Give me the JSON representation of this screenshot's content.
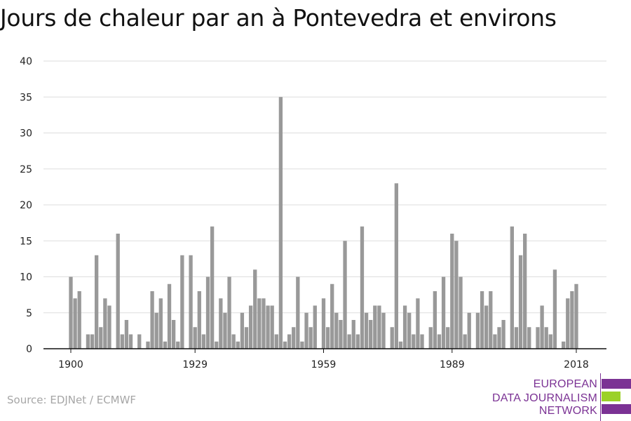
{
  "title": "Jours de chaleur par an à Pontevedra et environs",
  "source": "Source: EDJNet / ECMWF",
  "logo": {
    "line1": "EUROPEAN",
    "line2": "DATA JOURNALISM",
    "line3": "NETWORK",
    "purple": "#7b3294",
    "green": "#9bd128"
  },
  "chart_data": {
    "type": "bar",
    "title": "Jours de chaleur par an à Pontevedra et environs",
    "xlabel": "",
    "ylabel": "",
    "x_start": 1900,
    "x_end": 2018,
    "ylim": [
      0,
      40
    ],
    "yticks": [
      0,
      5,
      10,
      15,
      20,
      25,
      30,
      35,
      40
    ],
    "xticks": [
      1900,
      1929,
      1959,
      1989,
      2018
    ],
    "grid": true,
    "bar_color": "#999999",
    "values": [
      10,
      7,
      8,
      0,
      2,
      2,
      13,
      3,
      7,
      6,
      0,
      16,
      2,
      4,
      2,
      0,
      2,
      0,
      1,
      8,
      5,
      7,
      1,
      9,
      4,
      1,
      13,
      0,
      13,
      3,
      8,
      2,
      10,
      17,
      1,
      7,
      5,
      10,
      2,
      1,
      5,
      3,
      6,
      11,
      7,
      7,
      6,
      6,
      2,
      35,
      1,
      2,
      3,
      10,
      1,
      5,
      3,
      6,
      0,
      7,
      3,
      9,
      5,
      4,
      15,
      2,
      4,
      2,
      17,
      5,
      4,
      6,
      6,
      5,
      0,
      3,
      23,
      1,
      6,
      5,
      2,
      7,
      2,
      0,
      3,
      8,
      2,
      10,
      3,
      16,
      15,
      10,
      2,
      5,
      0,
      5,
      8,
      6,
      8,
      2,
      3,
      4,
      0,
      17,
      3,
      13,
      16,
      3,
      0,
      3,
      6,
      3,
      2,
      11,
      0,
      1,
      7,
      8,
      9
    ]
  }
}
